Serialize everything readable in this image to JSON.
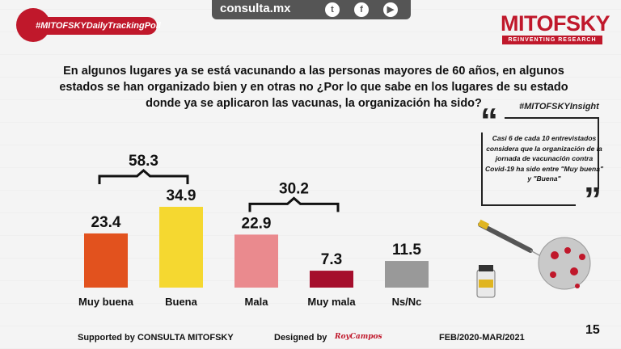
{
  "header": {
    "site": "consulta.mx",
    "social_icons": [
      "twitter-icon",
      "facebook-icon",
      "youtube-icon"
    ],
    "poll_tag": "#MITOFSKYDailyTrackingPoll",
    "brand": "MITOFSKY",
    "brand_tagline": "REINVENTING RESEARCH"
  },
  "question": "En algunos lugares ya se está vacunando a las personas mayores de 60 años, en algunos estados se han organizado bien y en otras no ¿Por lo que sabe en los lugares de su estado donde ya se aplicaron las vacunas, la organización ha sido?",
  "insight": {
    "title": "#MITOFSKYInsight",
    "text": "Casi 6 de cada 10 entrevistados considera que la organización de la jornada de vacunación contra Covid-19 ha sido  entre \"Muy buena\" y \"Buena\""
  },
  "chart_data": {
    "type": "bar",
    "categories": [
      "Muy buena",
      "Buena",
      "Mala",
      "Muy mala",
      "Ns/Nc"
    ],
    "values": [
      23.4,
      34.9,
      22.9,
      7.3,
      11.5
    ],
    "colors": [
      "#e2521e",
      "#f5d830",
      "#ea8a8e",
      "#a50e2c",
      "#999999"
    ],
    "groups": [
      {
        "label": "58.3",
        "from": 0,
        "to": 1
      },
      {
        "label": "30.2",
        "from": 2,
        "to": 3
      }
    ],
    "ylim": [
      0,
      40
    ]
  },
  "footer": {
    "supported_by": "Supported by   CONSULTA  MITOFSKY",
    "designed_by": "Designed by",
    "designer": "RoyCampos",
    "period": "FEB/2020-MAR/2021",
    "page": "15"
  }
}
